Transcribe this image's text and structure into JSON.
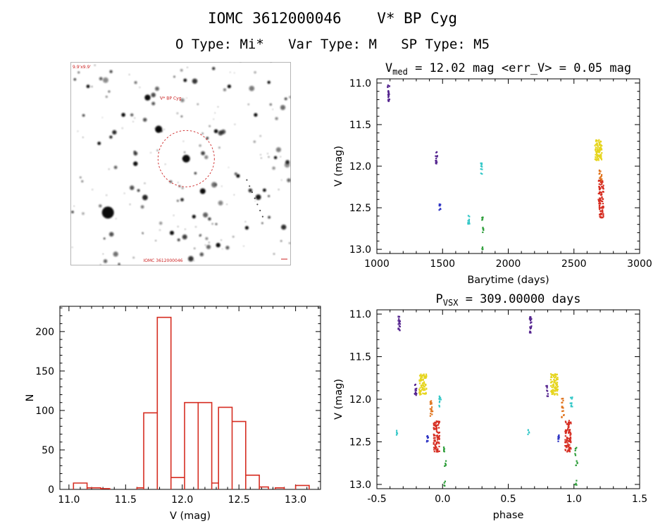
{
  "header": {
    "title": "IOMC 3612000046    V* BP Cyg",
    "subtitle": "O Type: Mi*   Var Type: M   SP Type: M5"
  },
  "finding_chart": {
    "annotations": {
      "top_left": "9.9'x9.9'",
      "target_label": "V* BP Cyg",
      "bottom_label": "IOMC 3612000046"
    },
    "circle_color": "#cc2222"
  },
  "palette": {
    "purple": "#55258f",
    "blue": "#2f35c4",
    "cyan": "#35c8c8",
    "green": "#2e9e3a",
    "yellow": "#e6d51f",
    "orange": "#e0741f",
    "red": "#d62e22"
  },
  "chart_data": [
    {
      "id": "light-curve",
      "type": "scatter",
      "title_parts": [
        {
          "t": "V"
        },
        {
          "t": "med",
          "sub": true
        },
        {
          "t": " = 12.02 mag <err_V> = 0.05 mag"
        }
      ],
      "xlabel": "Barytime (days)",
      "ylabel": "V (mag)",
      "xlim": [
        1000,
        3000
      ],
      "ylim": [
        13.05,
        10.95
      ],
      "xticks": {
        "values": [
          1000,
          1500,
          2000,
          2500,
          3000
        ],
        "labels": [
          "1000",
          "1500",
          "2000",
          "2500",
          "3000"
        ],
        "minor": 100
      },
      "yticks": {
        "values": [
          11.0,
          11.5,
          12.0,
          12.5,
          13.0
        ],
        "labels": [
          "11.0",
          "11.5",
          "12.0",
          "12.5",
          "13.0"
        ],
        "minor": 0.1
      },
      "clusters": [
        {
          "color": "purple",
          "x": 1090,
          "v": [
            11.02,
            11.22
          ],
          "n": 22,
          "w": 16
        },
        {
          "color": "purple",
          "x": 1455,
          "v": [
            11.82,
            11.97
          ],
          "n": 14,
          "w": 16
        },
        {
          "color": "blue",
          "x": 1480,
          "v": [
            12.44,
            12.53
          ],
          "n": 8,
          "w": 10
        },
        {
          "color": "cyan",
          "x": 1700,
          "v": [
            12.58,
            12.7
          ],
          "n": 10,
          "w": 12
        },
        {
          "color": "cyan",
          "x": 1795,
          "v": [
            11.96,
            12.1
          ],
          "n": 10,
          "w": 12
        },
        {
          "color": "green",
          "x": 1805,
          "v": [
            12.55,
            12.66
          ],
          "n": 6,
          "w": 10
        },
        {
          "color": "green",
          "x": 1810,
          "v": [
            12.72,
            12.8
          ],
          "n": 5,
          "w": 10
        },
        {
          "color": "green",
          "x": 1805,
          "v": [
            12.95,
            13.02
          ],
          "n": 4,
          "w": 10
        },
        {
          "color": "yellow",
          "x": 2685,
          "v": [
            11.68,
            11.93
          ],
          "n": 85,
          "w": 55
        },
        {
          "color": "orange",
          "x": 2702,
          "v": [
            12.05,
            12.2
          ],
          "n": 16,
          "w": 25
        },
        {
          "color": "red",
          "x": 2706,
          "v": [
            12.16,
            12.62
          ],
          "n": 95,
          "w": 40
        }
      ]
    },
    {
      "id": "histogram",
      "type": "histogram",
      "color_key": "red",
      "xlabel": "V (mag)",
      "ylabel": "N",
      "xlim": [
        10.92,
        13.22
      ],
      "ylim": [
        0,
        232
      ],
      "xticks": {
        "values": [
          11.0,
          11.5,
          12.0,
          12.5,
          13.0
        ],
        "labels": [
          "11.0",
          "11.5",
          "12.0",
          "12.5",
          "13.0"
        ],
        "minor": 0.1
      },
      "yticks": {
        "values": [
          0,
          50,
          100,
          150,
          200
        ],
        "labels": [
          "0",
          "50",
          "100",
          "150",
          "200"
        ],
        "minor": 10
      },
      "bins": [
        {
          "from": 11.04,
          "to": 11.16,
          "n": 8
        },
        {
          "from": 11.16,
          "to": 11.28,
          "n": 2
        },
        {
          "from": 11.28,
          "to": 11.36,
          "n": 1
        },
        {
          "from": 11.6,
          "to": 11.66,
          "n": 2
        },
        {
          "from": 11.66,
          "to": 11.78,
          "n": 97
        },
        {
          "from": 11.78,
          "to": 11.9,
          "n": 218
        },
        {
          "from": 11.9,
          "to": 12.02,
          "n": 15
        },
        {
          "from": 12.02,
          "to": 12.14,
          "n": 110
        },
        {
          "from": 12.14,
          "to": 12.26,
          "n": 110
        },
        {
          "from": 12.26,
          "to": 12.32,
          "n": 8
        },
        {
          "from": 12.32,
          "to": 12.44,
          "n": 104
        },
        {
          "from": 12.44,
          "to": 12.56,
          "n": 86
        },
        {
          "from": 12.56,
          "to": 12.68,
          "n": 18
        },
        {
          "from": 12.68,
          "to": 12.76,
          "n": 3
        },
        {
          "from": 12.82,
          "to": 12.9,
          "n": 2
        },
        {
          "from": 13.0,
          "to": 13.12,
          "n": 5
        }
      ]
    },
    {
      "id": "phase-curve",
      "type": "scatter",
      "title_parts": [
        {
          "t": "P"
        },
        {
          "t": "VSX",
          "sub": true
        },
        {
          "t": " = 309.00000 days"
        }
      ],
      "xlabel": "phase",
      "ylabel": "V (mag)",
      "xlim": [
        -0.5,
        1.5
      ],
      "ylim": [
        13.05,
        10.95
      ],
      "xticks": {
        "values": [
          -0.5,
          0,
          0.5,
          1,
          1.5
        ],
        "labels": [
          "-0.5",
          "0.0",
          "0.5",
          "1.0",
          "1.5"
        ],
        "minor": 0.1
      },
      "yticks": {
        "values": [
          11.0,
          11.5,
          12.0,
          12.5,
          13.0
        ],
        "labels": [
          "11.0",
          "11.5",
          "12.0",
          "12.5",
          "13.0"
        ],
        "minor": 0.1
      },
      "repeat_offset": 1.0,
      "clusters": [
        {
          "color": "purple",
          "x": -0.33,
          "v": [
            11.02,
            11.22
          ],
          "n": 22,
          "w": 0.015
        },
        {
          "color": "purple",
          "x": -0.205,
          "v": [
            11.82,
            11.97
          ],
          "n": 12,
          "w": 0.015
        },
        {
          "color": "yellow",
          "x": -0.15,
          "v": [
            11.7,
            11.95
          ],
          "n": 85,
          "w": 0.055
        },
        {
          "color": "orange",
          "x": -0.085,
          "v": [
            11.98,
            12.22
          ],
          "n": 16,
          "w": 0.02
        },
        {
          "color": "cyan",
          "x": -0.02,
          "v": [
            11.95,
            12.1
          ],
          "n": 10,
          "w": 0.015
        },
        {
          "color": "blue",
          "x": -0.115,
          "v": [
            12.42,
            12.5
          ],
          "n": 8,
          "w": 0.012
        },
        {
          "color": "red",
          "x": -0.045,
          "v": [
            12.25,
            12.62
          ],
          "n": 95,
          "w": 0.045
        },
        {
          "color": "cyan",
          "x": -0.345,
          "v": [
            12.36,
            12.42
          ],
          "n": 5,
          "w": 0.012
        },
        {
          "color": "green",
          "x": 0.015,
          "v": [
            12.55,
            12.66
          ],
          "n": 6,
          "w": 0.015
        },
        {
          "color": "green",
          "x": 0.02,
          "v": [
            12.72,
            12.8
          ],
          "n": 5,
          "w": 0.015
        },
        {
          "color": "green",
          "x": 0.015,
          "v": [
            12.95,
            13.02
          ],
          "n": 4,
          "w": 0.015
        }
      ]
    }
  ]
}
